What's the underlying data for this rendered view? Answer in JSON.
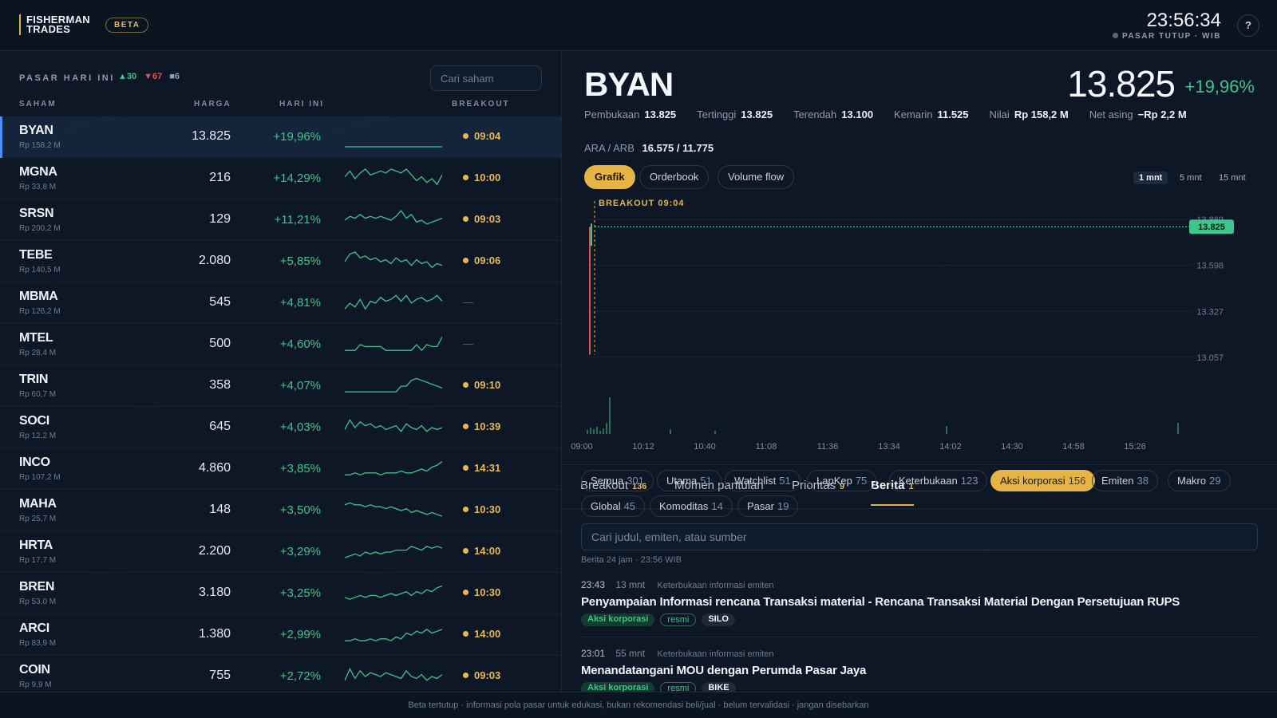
{
  "brand": {
    "name_line1": "FISHERMAN",
    "name_line2": "TRADES",
    "badge": "BETA"
  },
  "header": {
    "clock": "23:56:34",
    "market_status": "PASAR TUTUP · WIB",
    "help": "?"
  },
  "watchlist": {
    "title": "PASAR HARI INI",
    "up_count": "▲30",
    "down_count": "▼67",
    "flat_count": "■6",
    "search_placeholder": "Cari saham",
    "columns": [
      "SAHAM",
      "HARGA",
      "HARI INI",
      "BREAKOUT"
    ],
    "rows": [
      {
        "ticker": "BYAN",
        "value": "Rp 158,2 M",
        "price": "13.825",
        "change": "+19,96%",
        "breakout": "09:04",
        "spark": [
          0,
          0,
          0,
          0,
          0,
          0,
          0,
          0,
          0,
          0,
          0,
          0,
          0,
          0,
          0,
          0,
          0,
          0,
          0,
          0
        ]
      },
      {
        "ticker": "MGNA",
        "value": "Rp 33,8 M",
        "price": "216",
        "change": "+14,29%",
        "breakout": "10:00",
        "spark": [
          6,
          9,
          5,
          8,
          10,
          7,
          8,
          9,
          8,
          10,
          9,
          8,
          10,
          7,
          4,
          6,
          3,
          5,
          2,
          7
        ]
      },
      {
        "ticker": "SRSN",
        "value": "Rp 200,2 M",
        "price": "129",
        "change": "+11,21%",
        "breakout": "09:03",
        "spark": [
          5,
          7,
          6,
          8,
          6,
          7,
          6,
          7,
          6,
          5,
          7,
          10,
          6,
          8,
          4,
          5,
          3,
          4,
          5,
          6
        ]
      },
      {
        "ticker": "TEBE",
        "value": "Rp 140,5 M",
        "price": "2.080",
        "change": "+5,85%",
        "breakout": "09:06",
        "spark": [
          5,
          9,
          10,
          7,
          8,
          6,
          7,
          5,
          6,
          4,
          7,
          5,
          6,
          3,
          6,
          4,
          5,
          2,
          4,
          3
        ]
      },
      {
        "ticker": "MBMA",
        "value": "Rp 126,2 M",
        "price": "545",
        "change": "+4,81%",
        "breakout": "",
        "spark": [
          2,
          5,
          3,
          7,
          2,
          6,
          5,
          8,
          6,
          7,
          9,
          6,
          9,
          5,
          7,
          8,
          6,
          7,
          9,
          6
        ]
      },
      {
        "ticker": "MTEL",
        "value": "Rp 28,4 M",
        "price": "500",
        "change": "+4,60%",
        "breakout": "",
        "spark": [
          2,
          2,
          2,
          5,
          4,
          4,
          4,
          4,
          2,
          2,
          2,
          2,
          2,
          2,
          5,
          2,
          5,
          4,
          4,
          9
        ]
      },
      {
        "ticker": "TRIN",
        "value": "Rp 60,7 M",
        "price": "358",
        "change": "+4,07%",
        "breakout": "09:10",
        "spark": [
          2,
          2,
          2,
          2,
          2,
          2,
          2,
          2,
          2,
          2,
          2,
          5,
          5,
          8,
          9,
          8,
          7,
          6,
          5,
          4
        ]
      },
      {
        "ticker": "SOCI",
        "value": "Rp 12,2 M",
        "price": "645",
        "change": "+4,03%",
        "breakout": "10:39",
        "spark": [
          4,
          9,
          5,
          8,
          6,
          7,
          5,
          6,
          4,
          5,
          6,
          3,
          7,
          5,
          4,
          6,
          3,
          5,
          4,
          5
        ]
      },
      {
        "ticker": "INCO",
        "value": "Rp 107,2 M",
        "price": "4.860",
        "change": "+3,85%",
        "breakout": "14:31",
        "spark": [
          2,
          2,
          3,
          2,
          3,
          3,
          3,
          2,
          3,
          3,
          3,
          4,
          3,
          3,
          4,
          5,
          4,
          6,
          7,
          9
        ]
      },
      {
        "ticker": "MAHA",
        "value": "Rp 25,7 M",
        "price": "148",
        "change": "+3,50%",
        "breakout": "10:30",
        "spark": [
          8,
          9,
          8,
          8,
          7,
          8,
          7,
          7,
          6,
          7,
          6,
          5,
          6,
          4,
          5,
          4,
          3,
          4,
          3,
          2
        ]
      },
      {
        "ticker": "HRTA",
        "value": "Rp 17,7 M",
        "price": "2.200",
        "change": "+3,29%",
        "breakout": "14:00",
        "spark": [
          2,
          3,
          4,
          3,
          5,
          4,
          5,
          4,
          5,
          5,
          6,
          6,
          6,
          8,
          7,
          6,
          8,
          7,
          8,
          7
        ]
      },
      {
        "ticker": "BREN",
        "value": "Rp 53,0 M",
        "price": "3.180",
        "change": "+3,25%",
        "breakout": "10:30",
        "spark": [
          3,
          2,
          3,
          4,
          3,
          4,
          4,
          3,
          4,
          5,
          4,
          5,
          6,
          4,
          6,
          5,
          7,
          6,
          8,
          9
        ]
      },
      {
        "ticker": "ARCI",
        "value": "Rp 83,9 M",
        "price": "1.380",
        "change": "+2,99%",
        "breakout": "14:00",
        "spark": [
          2,
          2,
          3,
          2,
          2,
          3,
          2,
          3,
          3,
          2,
          4,
          3,
          6,
          5,
          7,
          6,
          8,
          6,
          7,
          8
        ]
      },
      {
        "ticker": "COIN",
        "value": "Rp 9,9 M",
        "price": "755",
        "change": "+2,72%",
        "breakout": "09:03",
        "spark": [
          3,
          9,
          4,
          8,
          5,
          7,
          6,
          5,
          7,
          6,
          5,
          4,
          8,
          5,
          4,
          6,
          3,
          5,
          4,
          6
        ]
      }
    ]
  },
  "detail": {
    "symbol": "BYAN",
    "price": "13.825",
    "change": "+19,96%",
    "stats": [
      {
        "label": "Pembukaan",
        "value": "13.825"
      },
      {
        "label": "Tertinggi",
        "value": "13.825"
      },
      {
        "label": "Terendah",
        "value": "13.100"
      },
      {
        "label": "Kemarin",
        "value": "11.525"
      },
      {
        "label": "Nilai",
        "value": "Rp 158,2 M"
      },
      {
        "label": "Net asing",
        "value": "−Rp 2,2 M"
      }
    ],
    "ara_label": "ARA / ARB",
    "ara_value": "16.575 / 11.775",
    "chart_tabs": [
      "Grafik",
      "Orderbook",
      "Volume flow"
    ],
    "timeframes": [
      "1 mnt",
      "5 mnt",
      "15 mnt"
    ]
  },
  "chart_data": {
    "type": "line",
    "annotation": "BREAKOUT 09:04",
    "last_price_label": "13.825",
    "y_ticks": [
      "13.869",
      "13.598",
      "13.327",
      "13.057"
    ],
    "x_ticks": [
      "09:00",
      "10:12",
      "10:40",
      "11:08",
      "11:36",
      "13:34",
      "14:02",
      "14:30",
      "14:58",
      "15:26"
    ],
    "ylim": [
      12840,
      13920
    ],
    "series": [
      {
        "values": [
          13100,
          13825,
          13825,
          13825,
          13825,
          13825,
          13825,
          13825
        ]
      }
    ],
    "colors": {
      "up": "#3fc48b",
      "down": "#e05151",
      "accent": "#e6b443"
    }
  },
  "news": {
    "tabs": [
      {
        "label": "Breakout",
        "count": "136"
      },
      {
        "label": "Momen pantulan",
        "count": ""
      },
      {
        "label": "Prioritas",
        "count": "9"
      },
      {
        "label": "Berita",
        "count": "1"
      }
    ],
    "filters": [
      {
        "label": "Semua",
        "count": "301"
      },
      {
        "label": "Utama",
        "count": "51"
      },
      {
        "label": "Watchlist",
        "count": "51"
      },
      {
        "label": "LapKep",
        "count": "75"
      },
      {
        "label": "Keterbukaan",
        "count": "123"
      },
      {
        "label": "Aksi korporasi",
        "count": "156"
      },
      {
        "label": "Emiten",
        "count": "38"
      },
      {
        "label": "Makro",
        "count": "29"
      },
      {
        "label": "Global",
        "count": "45"
      },
      {
        "label": "Komoditas",
        "count": "14"
      },
      {
        "label": "Pasar",
        "count": "19"
      }
    ],
    "search_placeholder": "Cari judul, emiten, atau sumber",
    "meta": "Berita 24 jam · 23:56 WIB",
    "items": [
      {
        "time": "23:43",
        "ago": "13 mnt",
        "source": "Keterbukaan informasi emiten",
        "title": "Penyampaian Informasi rencana Transaksi material - Rencana Transaksi Material Dengan Persetujuan RUPS",
        "tag1": "Aksi korporasi",
        "tag2": "resmi",
        "ticker": "SILO"
      },
      {
        "time": "23:01",
        "ago": "55 mnt",
        "source": "Keterbukaan informasi emiten",
        "title": "Menandatangani MOU dengan Perumda Pasar Jaya",
        "tag1": "Aksi korporasi",
        "tag2": "resmi",
        "ticker": "BIKE"
      }
    ]
  },
  "footer": "Beta tertutup · informasi pola pasar untuk edukasi, bukan rekomendasi beli/jual · belum tervalidasi · jangan disebarkan"
}
